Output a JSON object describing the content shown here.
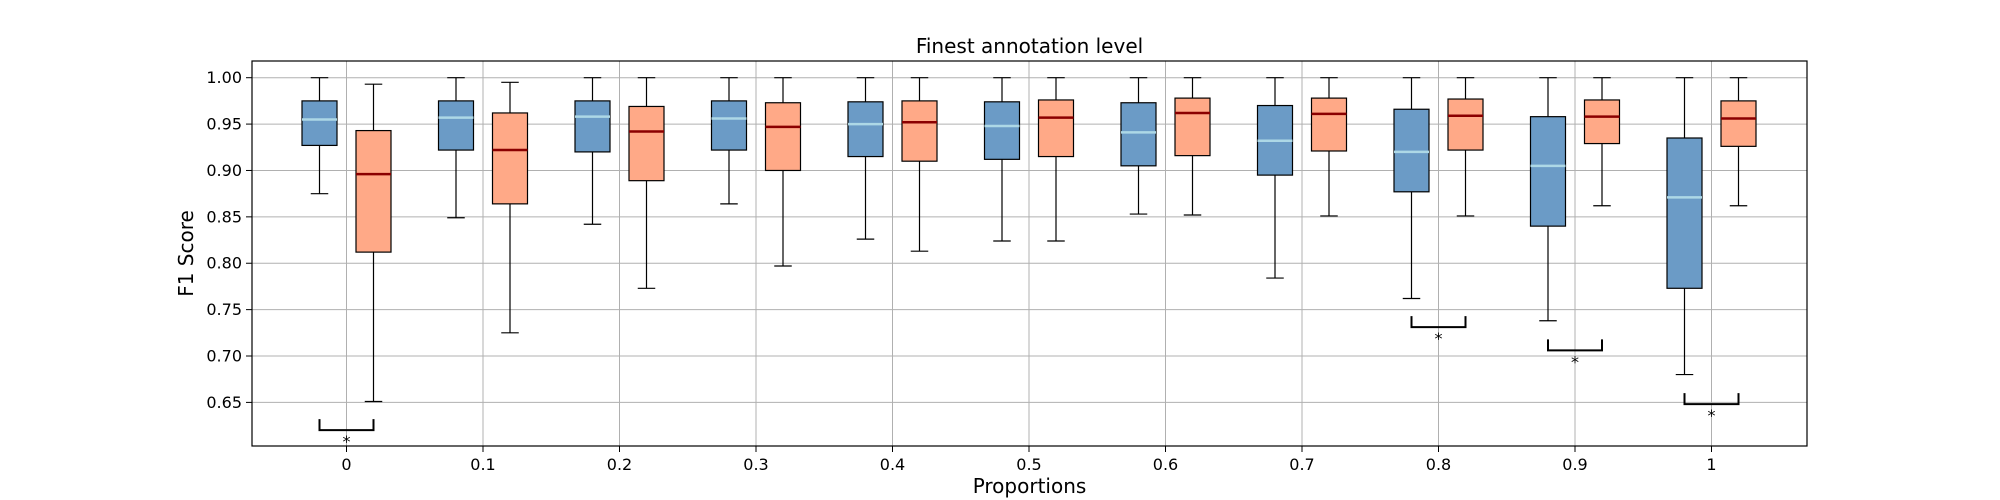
{
  "chart_data": {
    "type": "box",
    "title": "Finest annotation level",
    "xlabel": "Proportions",
    "ylabel": "F1 Score",
    "ylim": [
      0.603,
      1.018
    ],
    "yticks": [
      "0.65",
      "0.70",
      "0.75",
      "0.80",
      "0.85",
      "0.90",
      "0.95",
      "1.00"
    ],
    "categories": [
      "0",
      "0.1",
      "0.2",
      "0.3",
      "0.4",
      "0.5",
      "0.6",
      "0.7",
      "0.8",
      "0.9",
      "1"
    ],
    "grid": true,
    "series": [
      {
        "box_color": "#6b9bc6",
        "median_color": "#add8e6",
        "boxes": [
          {
            "whisker_low": 0.875,
            "q1": 0.927,
            "median": 0.955,
            "q3": 0.975,
            "whisker_high": 1.0
          },
          {
            "whisker_low": 0.849,
            "q1": 0.922,
            "median": 0.957,
            "q3": 0.975,
            "whisker_high": 1.0
          },
          {
            "whisker_low": 0.842,
            "q1": 0.92,
            "median": 0.958,
            "q3": 0.975,
            "whisker_high": 1.0
          },
          {
            "whisker_low": 0.864,
            "q1": 0.922,
            "median": 0.956,
            "q3": 0.975,
            "whisker_high": 1.0
          },
          {
            "whisker_low": 0.826,
            "q1": 0.915,
            "median": 0.95,
            "q3": 0.974,
            "whisker_high": 1.0
          },
          {
            "whisker_low": 0.824,
            "q1": 0.912,
            "median": 0.948,
            "q3": 0.974,
            "whisker_high": 1.0
          },
          {
            "whisker_low": 0.853,
            "q1": 0.905,
            "median": 0.941,
            "q3": 0.973,
            "whisker_high": 1.0
          },
          {
            "whisker_low": 0.784,
            "q1": 0.895,
            "median": 0.932,
            "q3": 0.97,
            "whisker_high": 1.0
          },
          {
            "whisker_low": 0.762,
            "q1": 0.877,
            "median": 0.92,
            "q3": 0.966,
            "whisker_high": 1.0
          },
          {
            "whisker_low": 0.738,
            "q1": 0.84,
            "median": 0.905,
            "q3": 0.958,
            "whisker_high": 1.0
          },
          {
            "whisker_low": 0.68,
            "q1": 0.773,
            "median": 0.871,
            "q3": 0.935,
            "whisker_high": 1.0
          }
        ]
      },
      {
        "box_color": "#ffa987",
        "median_color": "#8b0000",
        "boxes": [
          {
            "whisker_low": 0.651,
            "q1": 0.812,
            "median": 0.896,
            "q3": 0.943,
            "whisker_high": 0.993
          },
          {
            "whisker_low": 0.725,
            "q1": 0.864,
            "median": 0.922,
            "q3": 0.962,
            "whisker_high": 0.995
          },
          {
            "whisker_low": 0.773,
            "q1": 0.889,
            "median": 0.942,
            "q3": 0.969,
            "whisker_high": 1.0
          },
          {
            "whisker_low": 0.797,
            "q1": 0.9,
            "median": 0.947,
            "q3": 0.973,
            "whisker_high": 1.0
          },
          {
            "whisker_low": 0.813,
            "q1": 0.91,
            "median": 0.952,
            "q3": 0.975,
            "whisker_high": 1.0
          },
          {
            "whisker_low": 0.824,
            "q1": 0.915,
            "median": 0.957,
            "q3": 0.976,
            "whisker_high": 1.0
          },
          {
            "whisker_low": 0.852,
            "q1": 0.916,
            "median": 0.962,
            "q3": 0.978,
            "whisker_high": 1.0
          },
          {
            "whisker_low": 0.851,
            "q1": 0.921,
            "median": 0.961,
            "q3": 0.978,
            "whisker_high": 1.0
          },
          {
            "whisker_low": 0.851,
            "q1": 0.922,
            "median": 0.959,
            "q3": 0.977,
            "whisker_high": 1.0
          },
          {
            "whisker_low": 0.862,
            "q1": 0.929,
            "median": 0.958,
            "q3": 0.976,
            "whisker_high": 1.0
          },
          {
            "whisker_low": 0.862,
            "q1": 0.926,
            "median": 0.956,
            "q3": 0.975,
            "whisker_high": 1.0
          }
        ]
      }
    ],
    "significance_brackets": [
      {
        "category": "0",
        "y": 0.632,
        "label": "*"
      },
      {
        "category": "0.8",
        "y": 0.743,
        "label": "*"
      },
      {
        "category": "0.9",
        "y": 0.718,
        "label": "*"
      },
      {
        "category": "1",
        "y": 0.66,
        "label": "*"
      }
    ]
  }
}
